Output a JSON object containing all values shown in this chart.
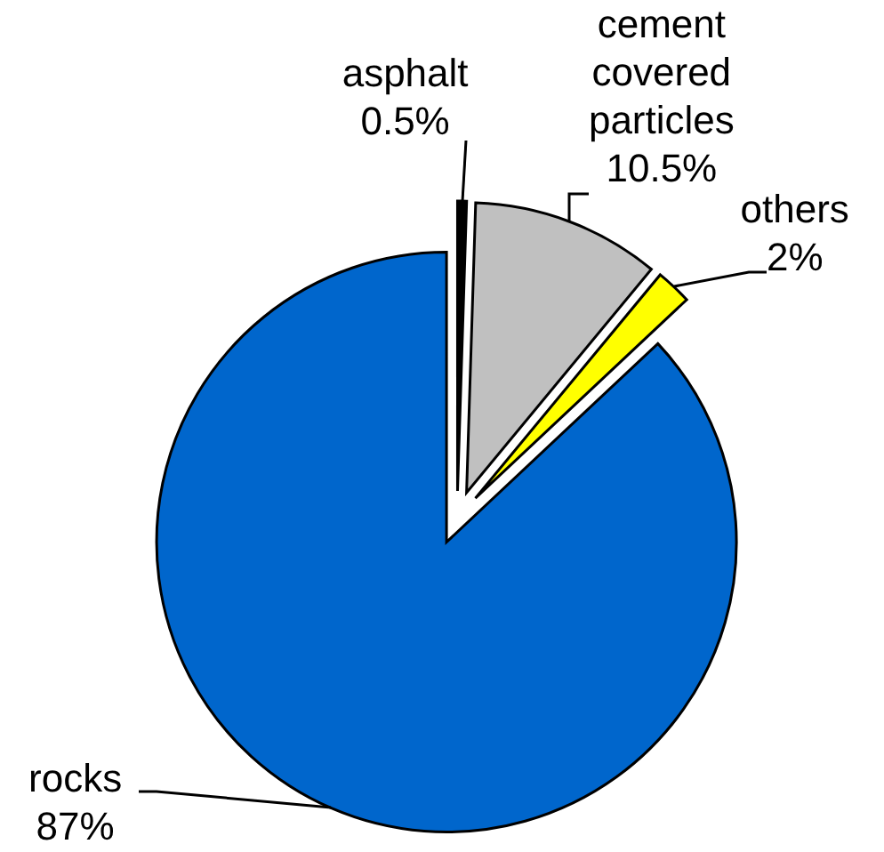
{
  "chart_data": {
    "type": "pie",
    "categories": [
      "asphalt",
      "cement covered particles",
      "others",
      "rocks"
    ],
    "values": [
      0.5,
      10.5,
      2,
      87
    ],
    "colors": [
      "#000000",
      "#c0c0c0",
      "#ffff00",
      "#0066cc"
    ],
    "value_labels": [
      "0.5%",
      "10.5%",
      "2%",
      "87%"
    ]
  }
}
